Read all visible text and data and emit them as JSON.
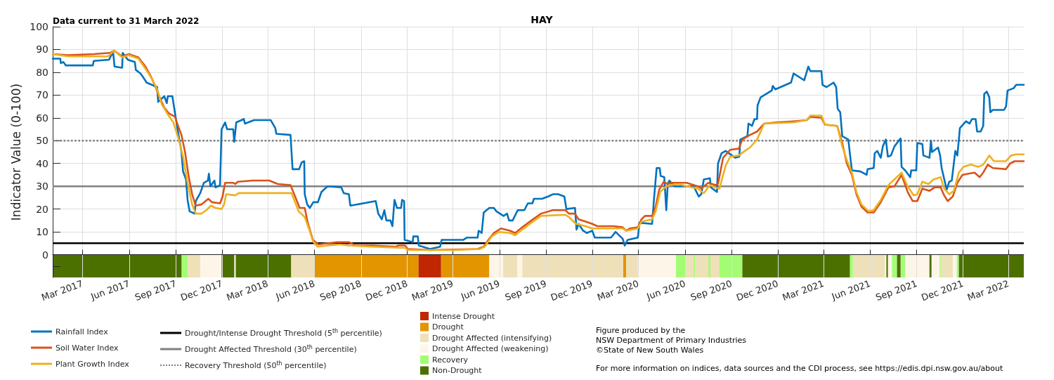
{
  "chart_data": {
    "type": "line",
    "title": "HAY",
    "ylabel": "Indicator Value (0-100)",
    "annotations": [
      "Data current to 31 March 2022",
      "Figure produced by the",
      "NSW Department of Primary Industries",
      "©State of New South Wales",
      "For more information on indices, data sources and the CDI process, see https://edis.dpi.nsw.gov.au/about"
    ],
    "xlim": [
      "2017-01-01",
      "2022-03-31"
    ],
    "xticks": [
      {
        "value": "2017-03-01",
        "label": "Mar 2017"
      },
      {
        "value": "2017-06-01",
        "label": "Jun 2017"
      },
      {
        "value": "2017-09-01",
        "label": "Sep 2017"
      },
      {
        "value": "2017-12-01",
        "label": "Dec 2017"
      },
      {
        "value": "2018-03-01",
        "label": "Mar 2018"
      },
      {
        "value": "2018-06-01",
        "label": "Jun 2018"
      },
      {
        "value": "2018-09-01",
        "label": "Sep 2018"
      },
      {
        "value": "2018-12-01",
        "label": "Dec 2018"
      },
      {
        "value": "2019-03-01",
        "label": "Mar 2019"
      },
      {
        "value": "2019-06-01",
        "label": "Jun 2019"
      },
      {
        "value": "2019-09-01",
        "label": "Sep 2019"
      },
      {
        "value": "2019-12-01",
        "label": "Dec 2019"
      },
      {
        "value": "2020-03-01",
        "label": "Mar 2020"
      },
      {
        "value": "2020-06-01",
        "label": "Jun 2020"
      },
      {
        "value": "2020-09-01",
        "label": "Sep 2020"
      },
      {
        "value": "2020-12-01",
        "label": "Dec 2020"
      },
      {
        "value": "2021-03-01",
        "label": "Mar 2021"
      },
      {
        "value": "2021-06-01",
        "label": "Jun 2021"
      },
      {
        "value": "2021-09-01",
        "label": "Sep 2021"
      },
      {
        "value": "2021-12-01",
        "label": "Dec 2021"
      },
      {
        "value": "2022-03-01",
        "label": "Mar 2022"
      }
    ],
    "ylim": [
      -10,
      100
    ],
    "yticks": [
      {
        "value": -5,
        "label": null
      },
      0,
      10,
      20,
      30,
      40,
      50,
      60,
      70,
      80,
      90,
      100
    ],
    "grid": true,
    "legend": "bottom",
    "marker": "none",
    "series": [
      {
        "name": "Rainfall Index",
        "color": "#0072bd",
        "x": [
          "2017-01-01",
          "2017-01-16",
          "2017-01-17",
          "2017-01-22",
          "2017-01-27",
          "2017-03-21",
          "2017-03-23",
          "2017-04-22",
          "2017-04-30",
          "2017-05-03",
          "2017-05-18",
          "2017-05-19",
          "2017-05-29",
          "2017-06-12",
          "2017-06-14",
          "2017-06-23",
          "2017-06-28",
          "2017-07-05",
          "2017-07-26",
          "2017-07-28",
          "2017-08-09",
          "2017-08-14",
          "2017-08-16",
          "2017-08-25",
          "2017-09-01",
          "2017-09-05",
          "2017-09-12",
          "2017-09-15",
          "2017-09-21",
          "2017-09-24",
          "2017-09-28",
          "2017-10-08",
          "2017-10-10",
          "2017-10-19",
          "2017-10-26",
          "2017-11-03",
          "2017-11-05",
          "2017-11-08",
          "2017-11-16",
          "2017-11-18",
          "2017-11-27",
          "2017-11-30",
          "2017-12-07",
          "2017-12-11",
          "2017-12-23",
          "2017-12-25",
          "2017-12-29",
          "2018-01-13",
          "2018-01-15",
          "2018-02-02",
          "2018-03-07",
          "2018-03-16",
          "2018-03-18",
          "2018-04-15",
          "2018-04-17",
          "2018-04-19",
          "2018-05-02",
          "2018-05-07",
          "2018-05-12",
          "2018-05-13",
          "2018-05-18",
          "2018-05-23",
          "2018-05-30",
          "2018-06-08",
          "2018-06-15",
          "2018-06-27",
          "2018-07-24",
          "2018-07-29",
          "2018-08-08",
          "2018-08-11",
          "2018-09-30",
          "2018-10-05",
          "2018-10-12",
          "2018-10-17",
          "2018-10-21",
          "2018-10-29",
          "2018-11-02",
          "2018-11-06",
          "2018-11-11",
          "2018-11-19",
          "2018-11-21",
          "2018-11-25",
          "2018-11-26",
          "2018-12-12",
          "2018-12-13",
          "2018-12-22",
          "2018-12-24",
          "2019-01-15",
          "2019-02-04",
          "2019-02-07",
          "2019-03-22",
          "2019-03-29",
          "2019-04-19",
          "2019-04-21",
          "2019-04-27",
          "2019-05-01",
          "2019-05-12",
          "2019-05-21",
          "2019-05-26",
          "2019-06-09",
          "2019-06-16",
          "2019-06-20",
          "2019-06-27",
          "2019-07-07",
          "2019-07-20",
          "2019-07-27",
          "2019-08-05",
          "2019-08-08",
          "2019-08-24",
          "2019-09-05",
          "2019-09-14",
          "2019-09-25",
          "2019-10-07",
          "2019-10-11",
          "2019-10-28",
          "2019-10-31",
          "2019-11-04",
          "2019-11-13",
          "2019-11-20",
          "2019-12-01",
          "2019-12-06",
          "2020-01-07",
          "2020-01-16",
          "2020-01-30",
          "2020-02-03",
          "2020-02-09",
          "2020-02-29",
          "2020-03-03",
          "2020-03-28",
          "2020-04-01",
          "2020-04-06",
          "2020-04-12",
          "2020-04-14",
          "2020-04-21",
          "2020-04-25",
          "2020-04-28",
          "2020-05-01",
          "2020-05-11",
          "2020-06-18",
          "2020-06-28",
          "2020-07-03",
          "2020-07-08",
          "2020-07-20",
          "2020-07-22",
          "2020-08-03",
          "2020-08-05",
          "2020-08-12",
          "2020-08-20",
          "2020-09-08",
          "2020-09-16",
          "2020-09-18",
          "2020-10-02",
          "2020-10-04",
          "2020-10-11",
          "2020-10-16",
          "2020-10-21",
          "2020-10-22",
          "2020-10-28",
          "2020-11-19",
          "2020-11-21",
          "2020-11-26",
          "2020-12-27",
          "2021-01-01",
          "2021-01-22",
          "2021-01-30",
          "2021-02-03",
          "2021-02-25",
          "2021-02-27",
          "2021-03-07",
          "2021-03-21",
          "2021-03-26",
          "2021-03-29",
          "2021-04-03",
          "2021-04-07",
          "2021-04-19",
          "2021-04-22",
          "2021-04-26",
          "2021-05-13",
          "2021-05-25",
          "2021-05-27",
          "2021-06-08",
          "2021-06-10",
          "2021-06-15",
          "2021-06-22",
          "2021-06-26",
          "2021-07-02",
          "2021-07-06",
          "2021-07-12",
          "2021-07-19",
          "2021-07-31",
          "2021-08-02",
          "2021-08-09",
          "2021-08-19",
          "2021-08-21",
          "2021-08-31",
          "2021-09-02",
          "2021-09-12",
          "2021-09-14",
          "2021-09-26",
          "2021-09-29",
          "2021-10-01",
          "2021-10-13",
          "2021-10-17",
          "2021-10-20",
          "2021-10-30",
          "2021-11-04",
          "2021-11-09",
          "2021-11-16",
          "2021-11-20",
          "2021-11-25",
          "2021-12-07",
          "2021-12-14",
          "2021-12-19",
          "2021-12-26",
          "2021-12-29",
          "2022-01-05",
          "2022-01-10",
          "2022-01-12",
          "2022-01-17",
          "2022-01-22",
          "2022-01-24",
          "2022-01-29",
          "2022-02-20",
          "2022-02-24",
          "2022-02-27",
          "2022-03-11",
          "2022-03-16",
          "2022-03-31"
        ],
        "values": [
          86,
          86,
          84,
          84.5,
          83,
          83,
          85,
          85.5,
          89,
          82.5,
          82,
          88.5,
          85.5,
          84.5,
          81,
          79.5,
          78,
          75.5,
          73.5,
          67,
          69.5,
          66.5,
          69.5,
          69.5,
          59.5,
          54,
          45,
          36.5,
          33,
          24,
          19,
          18,
          23.5,
          27,
          31.5,
          32.5,
          35.5,
          30,
          32.5,
          29.5,
          30.5,
          55,
          58,
          55,
          55,
          49.5,
          58,
          59.5,
          57.5,
          59,
          59,
          55.5,
          53,
          52.5,
          45,
          37.5,
          37.5,
          40.5,
          41,
          26.5,
          22,
          20.5,
          23,
          23,
          27.5,
          30,
          29.5,
          27,
          26.5,
          21.5,
          23.5,
          18,
          15.5,
          19.5,
          15,
          15,
          12.5,
          24,
          20.5,
          20.5,
          24,
          23.5,
          6.5,
          5.5,
          8,
          8,
          4,
          2.5,
          3.5,
          6.5,
          6.5,
          7.5,
          7.5,
          10.5,
          9.5,
          18.5,
          20.5,
          20.5,
          19,
          17,
          18,
          15,
          15,
          19.5,
          19.5,
          22.5,
          22.5,
          24.5,
          24.5,
          25.5,
          26.5,
          26.5,
          25.5,
          20,
          20.5,
          11,
          13.5,
          10.5,
          9.5,
          10.5,
          7.5,
          7.5,
          10,
          7,
          4,
          6.5,
          7.5,
          14,
          13.5,
          25,
          38,
          38,
          34.5,
          34,
          19.5,
          31,
          32.5,
          30,
          30,
          25.5,
          26.5,
          33,
          33.5,
          29.5,
          27.5,
          40,
          44.5,
          45.5,
          42.5,
          43,
          50.5,
          52,
          57.5,
          56.5,
          59.5,
          59.5,
          65.5,
          69,
          72,
          74,
          72.5,
          75.5,
          79.5,
          76.5,
          82.5,
          80.5,
          80.5,
          74.5,
          73.5,
          75.5,
          73.5,
          64,
          62.5,
          52,
          50.5,
          44.5,
          37,
          36.5,
          35,
          37.5,
          38,
          44.5,
          45.5,
          42.5,
          47.5,
          50.5,
          43,
          43.5,
          47.5,
          51,
          38.5,
          37,
          34,
          37,
          37,
          49,
          48.5,
          43.5,
          42.5,
          50,
          45,
          47,
          43.5,
          38,
          28.5,
          32,
          32.5,
          45.5,
          43.5,
          55.5,
          58.5,
          57.5,
          59.5,
          59.5,
          54,
          54,
          56.5,
          70.5,
          71.5,
          69,
          62.5,
          63.5,
          63.5,
          65,
          72,
          73,
          74.5,
          74.5
        ]
      },
      {
        "name": "Soil Water Index",
        "color": "#d95319",
        "x": [
          "2017-01-01",
          "2017-01-31",
          "2017-03-23",
          "2017-04-24",
          "2017-05-02",
          "2017-05-18",
          "2017-05-31",
          "2017-06-19",
          "2017-07-03",
          "2017-07-14",
          "2017-07-23",
          "2017-07-30",
          "2017-08-09",
          "2017-08-18",
          "2017-08-30",
          "2017-09-06",
          "2017-09-12",
          "2017-09-19",
          "2017-09-26",
          "2017-10-03",
          "2017-10-10",
          "2017-10-21",
          "2017-11-04",
          "2017-11-11",
          "2017-11-27",
          "2017-12-02",
          "2017-12-07",
          "2017-12-23",
          "2017-12-27",
          "2018-01-01",
          "2018-01-31",
          "2018-03-04",
          "2018-03-21",
          "2018-04-15",
          "2018-04-24",
          "2018-05-03",
          "2018-05-13",
          "2018-05-19",
          "2018-05-29",
          "2018-06-09",
          "2018-06-28",
          "2018-07-16",
          "2018-08-08",
          "2018-08-22",
          "2018-09-24",
          "2018-11-09",
          "2018-11-13",
          "2018-11-27",
          "2018-12-02",
          "2019-01-17",
          "2019-04-19",
          "2019-05-01",
          "2019-05-12",
          "2019-05-21",
          "2019-06-04",
          "2019-06-22",
          "2019-07-02",
          "2019-07-16",
          "2019-08-03",
          "2019-08-22",
          "2019-09-14",
          "2019-10-09",
          "2019-10-16",
          "2019-10-28",
          "2019-11-04",
          "2019-11-18",
          "2019-12-01",
          "2019-12-11",
          "2020-01-12",
          "2020-01-30",
          "2020-02-06",
          "2020-02-13",
          "2020-02-29",
          "2020-03-07",
          "2020-03-14",
          "2020-03-28",
          "2020-04-04",
          "2020-04-11",
          "2020-04-20",
          "2020-04-27",
          "2020-05-06",
          "2020-06-04",
          "2020-06-26",
          "2020-07-03",
          "2020-07-08",
          "2020-07-17",
          "2020-07-31",
          "2020-08-05",
          "2020-08-15",
          "2020-08-29",
          "2020-09-15",
          "2020-09-22",
          "2020-10-07",
          "2020-10-21",
          "2020-11-04",
          "2020-11-28",
          "2021-01-01",
          "2021-01-27",
          "2021-02-03",
          "2021-02-25",
          "2021-03-04",
          "2021-03-28",
          "2021-04-07",
          "2021-04-16",
          "2021-04-26",
          "2021-05-05",
          "2021-05-15",
          "2021-05-27",
          "2021-06-08",
          "2021-06-22",
          "2021-07-07",
          "2021-07-19",
          "2021-08-02",
          "2021-08-14",
          "2021-08-24",
          "2021-09-02",
          "2021-09-12",
          "2021-09-26",
          "2021-10-06",
          "2021-10-18",
          "2021-10-25",
          "2021-11-01",
          "2021-11-11",
          "2021-11-20",
          "2021-11-30",
          "2021-12-12",
          "2021-12-24",
          "2022-01-03",
          "2022-01-10",
          "2022-01-19",
          "2022-01-29",
          "2022-02-24",
          "2022-03-04",
          "2022-03-13",
          "2022-03-31"
        ],
        "values": [
          88,
          87.5,
          88,
          88.5,
          89.5,
          87,
          88,
          86.5,
          82.5,
          78,
          73.5,
          69.5,
          64.5,
          62,
          60.5,
          56,
          52.5,
          45,
          34.5,
          26.5,
          21.5,
          22,
          24.5,
          23,
          22.5,
          25.5,
          31.5,
          31.5,
          31,
          32,
          32.5,
          32.5,
          31,
          30.5,
          25.5,
          20.5,
          20.5,
          14,
          6.5,
          4.5,
          5,
          5.5,
          5.5,
          4,
          4,
          3.5,
          4,
          4,
          2.5,
          2,
          2.5,
          3.5,
          7,
          9.5,
          11.5,
          10.5,
          9.5,
          12,
          15,
          18,
          19.5,
          19.5,
          18,
          18,
          15.5,
          14.5,
          13.5,
          12.5,
          12.5,
          12,
          10.5,
          11.5,
          12,
          15.5,
          17,
          17,
          21,
          28.5,
          32,
          31,
          31.5,
          31.5,
          30,
          29,
          30,
          31.5,
          30.5,
          31,
          42.5,
          46,
          46.5,
          50.5,
          52.5,
          54,
          57.5,
          58,
          58.5,
          59,
          60.5,
          60,
          57,
          56.5,
          49,
          40,
          35,
          26.5,
          21,
          18.5,
          18.5,
          23,
          29.5,
          30,
          35,
          27.5,
          23.5,
          23.5,
          29,
          28,
          29.5,
          29.5,
          26,
          23.5,
          25.5,
          31.5,
          35,
          35.5,
          36,
          34,
          36,
          39.5,
          38,
          37.5,
          40,
          41,
          41
        ]
      },
      {
        "name": "Plant Growth Index",
        "color": "#edb120",
        "x": [
          "2017-01-01",
          "2017-01-31",
          "2017-04-20",
          "2017-05-02",
          "2017-05-18",
          "2017-05-31",
          "2017-06-19",
          "2017-07-03",
          "2017-07-16",
          "2017-07-26",
          "2017-08-04",
          "2017-08-16",
          "2017-08-27",
          "2017-09-06",
          "2017-09-15",
          "2017-09-24",
          "2017-10-03",
          "2017-10-10",
          "2017-10-21",
          "2017-10-31",
          "2017-11-09",
          "2017-11-18",
          "2017-11-30",
          "2017-12-05",
          "2017-12-09",
          "2017-12-27",
          "2018-01-03",
          "2018-04-17",
          "2018-04-24",
          "2018-05-01",
          "2018-05-13",
          "2018-05-22",
          "2018-05-29",
          "2018-06-07",
          "2018-06-28",
          "2018-07-21",
          "2018-08-08",
          "2018-09-24",
          "2018-11-18",
          "2018-11-27",
          "2018-12-02",
          "2019-03-04",
          "2019-04-24",
          "2019-05-03",
          "2019-05-17",
          "2019-05-31",
          "2019-06-22",
          "2019-07-02",
          "2019-07-16",
          "2019-08-03",
          "2019-08-22",
          "2019-10-09",
          "2019-10-16",
          "2019-10-30",
          "2019-11-18",
          "2019-12-01",
          "2020-01-30",
          "2020-02-06",
          "2020-02-29",
          "2020-03-07",
          "2020-03-28",
          "2020-04-04",
          "2020-04-13",
          "2020-04-22",
          "2020-05-01",
          "2020-05-20",
          "2020-06-04",
          "2020-06-26",
          "2020-07-08",
          "2020-07-20",
          "2020-07-31",
          "2020-08-08",
          "2020-08-20",
          "2020-08-29",
          "2020-09-15",
          "2020-09-27",
          "2020-10-07",
          "2020-10-21",
          "2020-11-04",
          "2021-01-01",
          "2021-01-27",
          "2021-02-03",
          "2021-02-25",
          "2021-03-04",
          "2021-03-28",
          "2021-04-07",
          "2021-04-16",
          "2021-04-26",
          "2021-05-05",
          "2021-05-15",
          "2021-05-29",
          "2021-06-08",
          "2021-06-22",
          "2021-07-07",
          "2021-08-02",
          "2021-08-14",
          "2021-08-26",
          "2021-09-02",
          "2021-09-12",
          "2021-09-24",
          "2021-10-04",
          "2021-10-18",
          "2021-10-25",
          "2021-11-04",
          "2021-11-13",
          "2021-11-23",
          "2021-12-02",
          "2021-12-17",
          "2021-12-31",
          "2022-01-10",
          "2022-01-22",
          "2022-01-31",
          "2022-02-24",
          "2022-03-06",
          "2022-03-16",
          "2022-03-31"
        ],
        "values": [
          88,
          87,
          87,
          89.5,
          86.5,
          87.5,
          86,
          81.5,
          77,
          72.5,
          66,
          61.5,
          58,
          51,
          43,
          31.5,
          22,
          18,
          18,
          19.5,
          21.5,
          20.5,
          20,
          22,
          26.5,
          26,
          27,
          27,
          23,
          19,
          16.5,
          11,
          6,
          3.5,
          4,
          4.5,
          4,
          3.5,
          3,
          3,
          2,
          2,
          2.5,
          3.5,
          8,
          10,
          9.5,
          8.5,
          11,
          14,
          17,
          17.5,
          16.5,
          13.5,
          12.5,
          11.5,
          11.5,
          10.5,
          11.5,
          14.5,
          15.5,
          19,
          27.5,
          29.5,
          30.5,
          31,
          30,
          29,
          27,
          30.5,
          29.5,
          29,
          39,
          43,
          43.5,
          45.5,
          47,
          50.5,
          57.5,
          58,
          59,
          61,
          61,
          57,
          56.5,
          47.5,
          41.5,
          36,
          27.5,
          22,
          19,
          19.5,
          24,
          30.5,
          36,
          30,
          26,
          26.5,
          32,
          31,
          33,
          34,
          29,
          26.5,
          28,
          36,
          38.5,
          39.5,
          38.5,
          39.5,
          43.5,
          41,
          41,
          43.5,
          44,
          44
        ]
      }
    ],
    "ref_lines": [
      {
        "axis": "y",
        "value": 5,
        "label": "Drought/Intense Drought Threshold (5$^{th}$ percentile)",
        "color": "#000000",
        "line_style": "solid"
      },
      {
        "axis": "y",
        "value": 30,
        "label": "Drought Affected Threshold (30$^{th}$ percentile)",
        "color": "#808080",
        "line_style": "solid"
      },
      {
        "axis": "y",
        "value": 50,
        "label": "Recovery Threshold (50$^{th}$ percentile)",
        "color": "#808080",
        "line_style": "dotted"
      }
    ],
    "bands": [
      {
        "axis": "x",
        "from": "2018-12-23",
        "to": "2019-02-06",
        "color": "#c02600",
        "label": "Intense Drought"
      },
      {
        "axis": "x",
        "from": "2018-06-01",
        "to": "2018-12-23",
        "color": "#e39500",
        "label": "Drought"
      },
      {
        "axis": "x",
        "from": "2019-02-06",
        "to": "2019-05-12",
        "color": "#e39500"
      },
      {
        "axis": "x",
        "from": "2020-01-31",
        "to": "2020-02-06",
        "color": "#e39500"
      },
      {
        "axis": "x",
        "from": "2017-09-24",
        "to": "2017-10-19",
        "color": "#eee0b9",
        "label": "Drought Affected (intensifying)"
      },
      {
        "axis": "x",
        "from": "2018-04-16",
        "to": "2018-06-01",
        "color": "#eee0b9"
      },
      {
        "axis": "x",
        "from": "2019-06-08",
        "to": "2019-07-06",
        "color": "#eee0b9"
      },
      {
        "axis": "x",
        "from": "2019-07-16",
        "to": "2020-01-31",
        "color": "#eee0b9"
      },
      {
        "axis": "x",
        "from": "2020-02-06",
        "to": "2020-02-29",
        "color": "#eee0b9"
      },
      {
        "axis": "x",
        "from": "2020-06-03",
        "to": "2020-06-18",
        "color": "#eee0b9"
      },
      {
        "axis": "x",
        "from": "2020-06-21",
        "to": "2020-07-17",
        "color": "#eee0b9"
      },
      {
        "axis": "x",
        "from": "2020-07-21",
        "to": "2020-08-08",
        "color": "#eee0b9"
      },
      {
        "axis": "x",
        "from": "2021-04-28",
        "to": "2021-06-30",
        "color": "#eee0b9"
      },
      {
        "axis": "x",
        "from": "2021-10-18",
        "to": "2021-11-11",
        "color": "#eee0b9"
      },
      {
        "axis": "x",
        "from": "2017-10-19",
        "to": "2017-11-30",
        "color": "#fdf5e8",
        "label": "Drought Affected (weakening)"
      },
      {
        "axis": "x",
        "from": "2017-12-25",
        "to": "2017-12-28",
        "color": "#fdf5e8"
      },
      {
        "axis": "x",
        "from": "2019-05-12",
        "to": "2019-06-08",
        "color": "#fdf5e8"
      },
      {
        "axis": "x",
        "from": "2019-07-06",
        "to": "2019-07-16",
        "color": "#fdf5e8"
      },
      {
        "axis": "x",
        "from": "2020-02-29",
        "to": "2020-05-14",
        "color": "#fdf5e8"
      },
      {
        "axis": "x",
        "from": "2021-06-30",
        "to": "2021-07-03",
        "color": "#fdf5e8"
      },
      {
        "axis": "x",
        "from": "2021-07-06",
        "to": "2021-07-14",
        "color": "#fdf5e8"
      },
      {
        "axis": "x",
        "from": "2021-08-09",
        "to": "2021-09-26",
        "color": "#fdf5e8"
      },
      {
        "axis": "x",
        "from": "2021-09-30",
        "to": "2021-10-16",
        "color": "#fdf5e8"
      },
      {
        "axis": "x",
        "from": "2021-11-11",
        "to": "2021-11-19",
        "color": "#fdf5e8"
      },
      {
        "axis": "x",
        "from": "2017-09-12",
        "to": "2017-09-24",
        "color": "#a4fc74",
        "label": "Recovery"
      },
      {
        "axis": "x",
        "from": "2020-05-14",
        "to": "2020-06-03",
        "color": "#a4fc74"
      },
      {
        "axis": "x",
        "from": "2020-06-18",
        "to": "2020-06-21",
        "color": "#a4fc74"
      },
      {
        "axis": "x",
        "from": "2020-07-17",
        "to": "2020-07-21",
        "color": "#a4fc74"
      },
      {
        "axis": "x",
        "from": "2020-08-08",
        "to": "2020-09-22",
        "color": "#a4fc74"
      },
      {
        "axis": "x",
        "from": "2021-04-22",
        "to": "2021-04-28",
        "color": "#a4fc74"
      },
      {
        "axis": "x",
        "from": "2021-07-14",
        "to": "2021-07-24",
        "color": "#a4fc74"
      },
      {
        "axis": "x",
        "from": "2021-07-31",
        "to": "2021-08-09",
        "color": "#a4fc74"
      },
      {
        "axis": "x",
        "from": "2021-10-16",
        "to": "2021-10-18",
        "color": "#a4fc74"
      },
      {
        "axis": "x",
        "from": "2021-11-19",
        "to": "2021-11-23",
        "color": "#a4fc74"
      },
      {
        "axis": "x",
        "from": "2017-01-01",
        "to": "2017-09-12",
        "color": "#4c7000",
        "label": "Non-Drought"
      },
      {
        "axis": "x",
        "from": "2017-11-30",
        "to": "2017-12-25",
        "color": "#4c7000"
      },
      {
        "axis": "x",
        "from": "2017-12-28",
        "to": "2018-04-16",
        "color": "#4c7000"
      },
      {
        "axis": "x",
        "from": "2020-09-22",
        "to": "2021-04-22",
        "color": "#4c7000"
      },
      {
        "axis": "x",
        "from": "2021-07-03",
        "to": "2021-07-06",
        "color": "#4c7000"
      },
      {
        "axis": "x",
        "from": "2021-07-24",
        "to": "2021-07-31",
        "color": "#4c7000"
      },
      {
        "axis": "x",
        "from": "2021-09-26",
        "to": "2021-09-30",
        "color": "#4c7000"
      },
      {
        "axis": "x",
        "from": "2021-11-23",
        "to": "2022-03-31",
        "color": "#4c7000"
      }
    ]
  }
}
